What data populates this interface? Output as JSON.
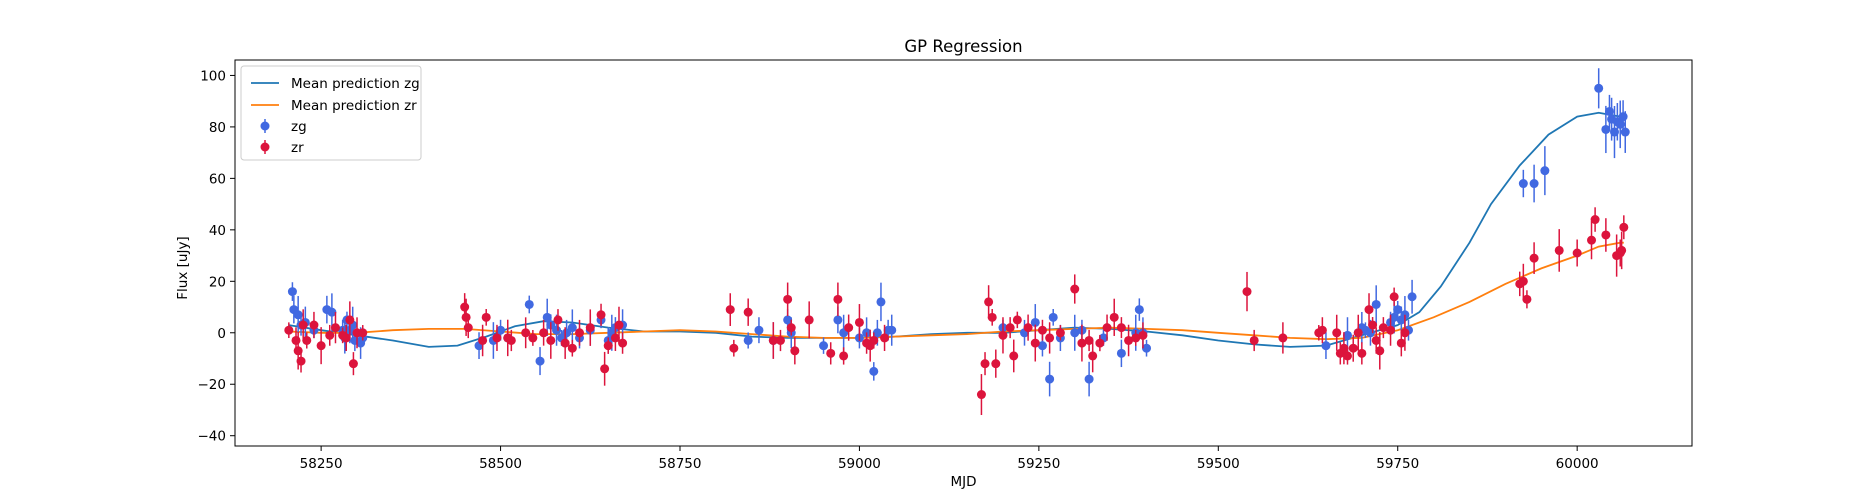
{
  "chart_data": {
    "type": "scatter",
    "title": "GP Regression",
    "xlabel": "MJD",
    "ylabel": "Flux [uJy]",
    "xlim": [
      58130,
      60160
    ],
    "ylim": [
      -44,
      106
    ],
    "xticks": [
      58250,
      58500,
      58750,
      59000,
      59250,
      59500,
      59750,
      60000
    ],
    "yticks": [
      -40,
      -20,
      0,
      20,
      40,
      60,
      80,
      100
    ],
    "legend": {
      "position": "top-left",
      "entries": [
        "Mean prediction zg",
        "Mean prediction zr",
        "zg",
        "zr"
      ]
    },
    "colors": {
      "zg_line": "#1f77b4",
      "zr_line": "#ff7f0e",
      "zg_points": "#4169e1",
      "zr_points": "#dc143c"
    },
    "series": [
      {
        "name": "Mean prediction zg",
        "kind": "line",
        "x": [
          58205,
          58250,
          58300,
          58350,
          58400,
          58440,
          58480,
          58520,
          58560,
          58600,
          58650,
          58700,
          58750,
          58800,
          58850,
          58900,
          58950,
          59000,
          59050,
          59100,
          59150,
          59200,
          59250,
          59300,
          59350,
          59400,
          59450,
          59500,
          59550,
          59600,
          59650,
          59700,
          59750,
          59780,
          59810,
          59850,
          59880,
          59920,
          59960,
          60000,
          60030,
          60060,
          60065
        ],
        "y": [
          3,
          1,
          -1,
          -3,
          -5.5,
          -5,
          -1.5,
          2.5,
          4.5,
          4,
          2,
          0.5,
          0.5,
          0,
          -1.5,
          -2,
          -2,
          -2,
          -1.5,
          -0.5,
          0,
          0,
          1,
          2,
          1.5,
          0.5,
          -1,
          -3,
          -4.5,
          -5.5,
          -5,
          -1,
          3,
          8,
          18,
          35,
          50,
          65,
          77,
          84,
          85.5,
          84,
          83
        ]
      },
      {
        "name": "Mean prediction zr",
        "kind": "line",
        "x": [
          58205,
          58250,
          58300,
          58350,
          58400,
          58450,
          58500,
          58550,
          58600,
          58650,
          58700,
          58750,
          58800,
          58850,
          58900,
          58950,
          59000,
          59050,
          59100,
          59150,
          59200,
          59250,
          59300,
          59350,
          59400,
          59450,
          59500,
          59550,
          59600,
          59650,
          59700,
          59750,
          59800,
          59850,
          59900,
          59950,
          60000,
          60030,
          60060,
          60065
        ],
        "y": [
          0.5,
          0,
          0,
          1,
          1.5,
          1.5,
          0.5,
          -0.5,
          -0.5,
          0,
          0.5,
          1,
          0.5,
          -0.5,
          -1.5,
          -2,
          -2,
          -1.5,
          -1,
          -0.5,
          0.5,
          1,
          1.5,
          2,
          1.5,
          1,
          0,
          -1,
          -2,
          -2.5,
          -2,
          1,
          6,
          12,
          19,
          25,
          30,
          33.5,
          35,
          35
        ]
      },
      {
        "name": "zg",
        "kind": "points",
        "x": [
          58210,
          58212,
          58218,
          58222,
          58228,
          58240,
          58258,
          58265,
          58280,
          58283,
          58286,
          58290,
          58294,
          58297,
          58305,
          58308,
          58470,
          58490,
          58500,
          58510,
          58540,
          58555,
          58565,
          58570,
          58578,
          58585,
          58592,
          58600,
          58610,
          58625,
          58640,
          58650,
          58655,
          58660,
          58670,
          58845,
          58860,
          58880,
          58900,
          58905,
          58950,
          58970,
          58978,
          59000,
          59010,
          59020,
          59025,
          59030,
          59040,
          59045,
          59200,
          59230,
          59245,
          59255,
          59265,
          59270,
          59280,
          59300,
          59310,
          59320,
          59340,
          59365,
          59385,
          59390,
          59395,
          59400,
          59650,
          59680,
          59695,
          59700,
          59705,
          59712,
          59720,
          59740,
          59745,
          59750,
          59755,
          59760,
          59765,
          59770,
          59925,
          59940,
          59955,
          60030,
          60040,
          60045,
          60048,
          60052,
          60056,
          60060,
          60064,
          60067
        ],
        "y": [
          16,
          9,
          7,
          3,
          4,
          1,
          9,
          8,
          1,
          -2,
          5,
          1,
          3,
          -3,
          -4,
          -2,
          -5,
          -3,
          1,
          -2,
          11,
          -11,
          6,
          3,
          1,
          -2,
          0,
          2,
          -2,
          1,
          5,
          -3,
          0,
          2,
          3,
          -3,
          1,
          -3,
          5,
          0,
          -5,
          5,
          0,
          -2,
          0,
          -15,
          0,
          12,
          1,
          1,
          2,
          0,
          4,
          -5,
          -18,
          6,
          -2,
          0,
          1,
          -18,
          -2,
          -8,
          0,
          9,
          0,
          -6,
          -5,
          -1,
          0,
          2,
          1,
          0,
          11,
          4,
          6,
          9,
          5,
          7,
          1,
          14,
          58,
          58,
          63,
          95,
          79,
          86,
          83,
          78,
          82,
          81,
          84,
          78
        ]
      },
      {
        "name": "zr",
        "kind": "points",
        "x": [
          58205,
          58215,
          58218,
          58222,
          58225,
          58230,
          58240,
          58250,
          58262,
          58270,
          58280,
          58285,
          58290,
          58295,
          58300,
          58308,
          58450,
          58452,
          58455,
          58475,
          58480,
          58495,
          58510,
          58515,
          58535,
          58545,
          58560,
          58570,
          58580,
          58590,
          58600,
          58610,
          58625,
          58640,
          58645,
          58650,
          58660,
          58665,
          58670,
          58820,
          58825,
          58845,
          58880,
          58890,
          58900,
          58905,
          58910,
          58930,
          58960,
          58970,
          58978,
          58985,
          59000,
          59010,
          59015,
          59020,
          59035,
          59170,
          59175,
          59180,
          59185,
          59190,
          59200,
          59210,
          59215,
          59220,
          59235,
          59245,
          59255,
          59265,
          59280,
          59300,
          59310,
          59320,
          59325,
          59335,
          59345,
          59355,
          59365,
          59375,
          59385,
          59395,
          59540,
          59550,
          59590,
          59640,
          59645,
          59665,
          59670,
          59675,
          59680,
          59688,
          59695,
          59700,
          59710,
          59715,
          59720,
          59725,
          59730,
          59740,
          59745,
          59755,
          59760,
          59920,
          59925,
          59930,
          59940,
          59975,
          60000,
          60020,
          60025,
          60040,
          60055,
          60060,
          60062,
          60065
        ],
        "y": [
          1,
          -3,
          -7,
          -11,
          3,
          -3,
          3,
          -5,
          -1,
          2,
          -1,
          -2,
          5,
          -12,
          0,
          0,
          10,
          6,
          2,
          -3,
          6,
          -2,
          -2,
          -3,
          0,
          -2,
          0,
          -3,
          5,
          -4,
          -6,
          0,
          2,
          7,
          -14,
          -5,
          -2,
          3,
          -4,
          9,
          -6,
          8,
          -3,
          -3,
          13,
          2,
          -7,
          5,
          -8,
          13,
          -9,
          2,
          4,
          -4,
          -5,
          -3,
          -2,
          -24,
          -12,
          12,
          6,
          -12,
          -1,
          2,
          -9,
          5,
          2,
          -4,
          1,
          -2,
          0,
          17,
          -4,
          -3,
          -9,
          -4,
          2,
          6,
          2,
          -3,
          -2,
          -1,
          16,
          -3,
          -2,
          0,
          1,
          0,
          -8,
          -6,
          -9,
          -6,
          0,
          -8,
          9,
          3,
          -3,
          -7,
          2,
          1,
          14,
          -4,
          0,
          19,
          20,
          13,
          29,
          32,
          31,
          36,
          44,
          38,
          30,
          31,
          32,
          41
        ]
      }
    ]
  }
}
